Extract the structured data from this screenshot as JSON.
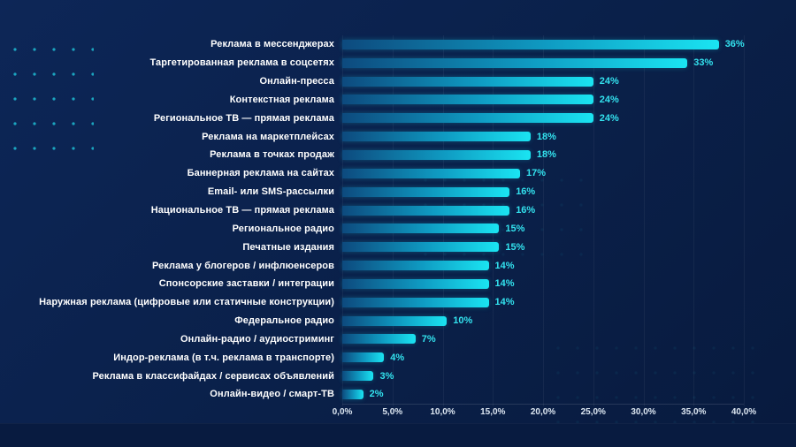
{
  "chart_data": {
    "type": "bar",
    "orientation": "horizontal",
    "title": "",
    "xlabel": "",
    "ylabel": "",
    "xlim": [
      0,
      40
    ],
    "grid": true,
    "legend": "none",
    "categories": [
      "Реклама в мессенджерах",
      "Таргетированная реклама в соцсетях",
      "Онлайн-пресса",
      "Контекстная реклама",
      "Региональное ТВ — прямая реклама",
      "Реклама на маркетплейсах",
      "Реклама в точках продаж",
      "Баннерная реклама на сайтах",
      "Email- или SMS-рассылки",
      "Национальное ТВ — прямая реклама",
      "Региональное радио",
      "Печатные издания",
      "Реклама у блогеров / инфлюенсеров",
      "Спонсорские заставки / интеграции",
      "Наружная реклама (цифровые или статичные конструкции)",
      "Федеральное радио",
      "Онлайн-радио / аудиостриминг",
      "Индор-реклама (в т.ч. реклама в транспорте)",
      "Реклама в классифайдах / сервисах объявлений",
      "Онлайн-видео / смарт-ТВ"
    ],
    "values": [
      36,
      33,
      24,
      24,
      24,
      18,
      18,
      17,
      16,
      16,
      15,
      15,
      14,
      14,
      14,
      10,
      7,
      4,
      3,
      2
    ],
    "value_labels": [
      "36%",
      "33%",
      "24%",
      "24%",
      "24%",
      "18%",
      "18%",
      "17%",
      "16%",
      "16%",
      "15%",
      "15%",
      "14%",
      "14%",
      "14%",
      "10%",
      "7%",
      "4%",
      "3%",
      "2%"
    ],
    "x_ticks": [
      "0,0%",
      "5,0%",
      "10,0%",
      "15,0%",
      "20,0%",
      "25,0%",
      "30,0%",
      "35,0%",
      "40,0%"
    ],
    "colors": {
      "background": "#0a2049",
      "bar_gradient_start": "#0d4a7e",
      "bar_gradient_end": "#1ae4f2",
      "value_text": "#33e3ef",
      "category_text": "#ffffff",
      "axis_text": "#dde7f2",
      "decor_dots": "#20cde1"
    }
  }
}
